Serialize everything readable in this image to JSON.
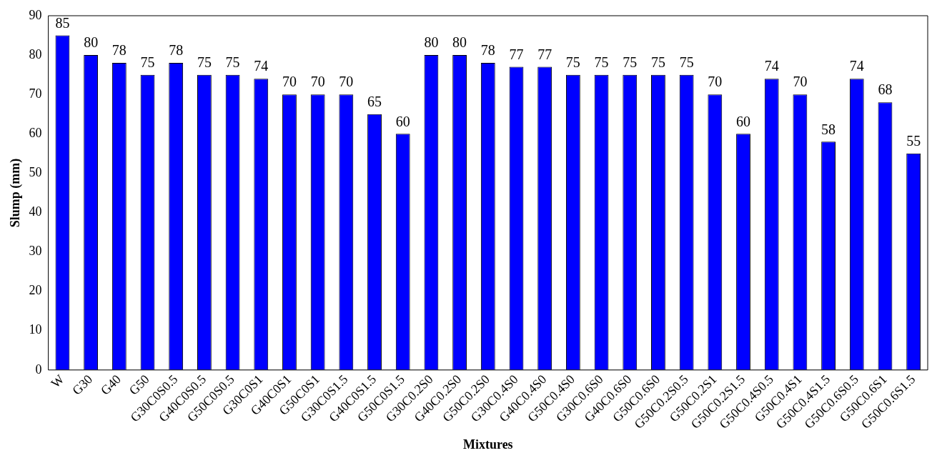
{
  "chart_data": {
    "type": "bar",
    "xlabel": "Mixtures",
    "ylabel": "Slump (mm)",
    "categories": [
      "W",
      "G30",
      "G40",
      "G50",
      "G30C0S0.5",
      "G40C0S0.5",
      "G50C0S0.5",
      "G30C0S1",
      "G40C0S1",
      "G50C0S1",
      "G30C0S1.5",
      "G40C0S1.5",
      "G50C0S1.5",
      "G30C0.2S0",
      "G40C0.2S0",
      "G50C0.2S0",
      "G30C0.4S0",
      "G40C0.4S0",
      "G50C0.4S0",
      "G30C0.6S0",
      "G40C0.6S0",
      "G50C0.6S0",
      "G50C0.2S0.5",
      "G50C0.2S1",
      "G50C0.2S1.5",
      "G50C0.4S0.5",
      "G50C0.4S1",
      "G50C0.4S1.5",
      "G50C0.6S0.5",
      "G50C0.6S1",
      "G50C0.6S1.5"
    ],
    "values": [
      85,
      80,
      78,
      75,
      78,
      75,
      75,
      74,
      70,
      70,
      70,
      65,
      60,
      80,
      80,
      78,
      77,
      77,
      75,
      75,
      75,
      75,
      75,
      70,
      60,
      74,
      70,
      58,
      74,
      68,
      55
    ],
    "color": "#0000ff",
    "ylim": [
      0,
      90
    ],
    "yticks": [
      0,
      10,
      20,
      30,
      40,
      50,
      60,
      70,
      80,
      90
    ],
    "grid": false,
    "legend": false,
    "data_labels": true
  }
}
